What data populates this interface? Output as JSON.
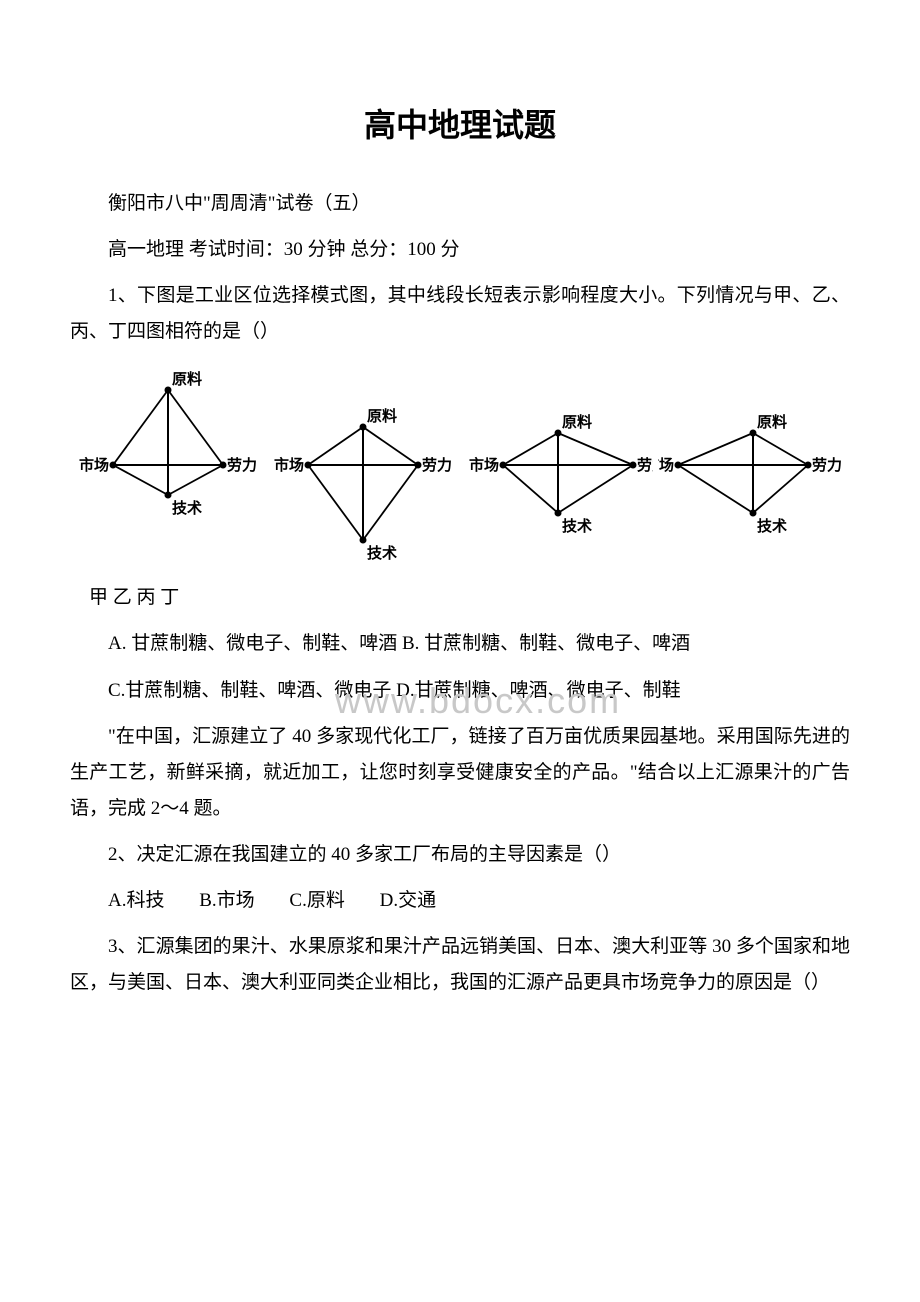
{
  "title": "高中地理试题",
  "subtitle": "衡阳市八中\"周周清\"试卷（五）",
  "exam_info": "高一地理 考试时间：30 分钟 总分：100 分",
  "q1": {
    "stem": "1、下图是工业区位选择模式图，其中线段长短表示影响程度大小。下列情况与甲、乙、丙、丁四图相符的是（）",
    "labels_line": " 甲 乙 丙 丁",
    "options_ab": "A. 甘蔗制糖、微电子、制鞋、啤酒 B. 甘蔗制糖、制鞋、微电子、啤酒",
    "options_cd": "C.甘蔗制糖、制鞋、啤酒、微电子 D.甘蔗制糖、啤酒、微电子、制鞋"
  },
  "passage": "\"在中国，汇源建立了 40 多家现代化工厂，链接了百万亩优质果园基地。采用国际先进的生产工艺，新鲜采摘，就近加工，让您时刻享受健康安全的产品。\"结合以上汇源果汁的广告语，完成 2～4 题。",
  "q2": {
    "stem": "2、决定汇源在我国建立的 40 多家工厂布局的主导因素是（）",
    "opt_a": "A.科技",
    "opt_b": "B.市场",
    "opt_c": "C.原料",
    "opt_d": "D.交通"
  },
  "q3": {
    "stem": "3、汇源集团的果汁、水果原浆和果汁产品远销美国、日本、澳大利亚等 30 多个国家和地区，与美国、日本、澳大利亚同类企业相比，我国的汇源产品更具市场竞争力的原因是（）"
  },
  "watermark_text": "www.bdocx.com",
  "diagram": {
    "axis_labels": {
      "top": "原料",
      "left": "市场",
      "right": "劳力",
      "bottom": "技术"
    },
    "colors": {
      "stroke": "#000000",
      "text": "#000000"
    },
    "charts": [
      {
        "top_len": 75,
        "bottom_len": 30,
        "left_len": 55,
        "right_len": 55
      },
      {
        "top_len": 38,
        "bottom_len": 75,
        "left_len": 55,
        "right_len": 55
      },
      {
        "top_len": 32,
        "bottom_len": 48,
        "left_len": 55,
        "right_len": 75
      },
      {
        "top_len": 32,
        "bottom_len": 48,
        "left_len": 75,
        "right_len": 55
      }
    ]
  }
}
